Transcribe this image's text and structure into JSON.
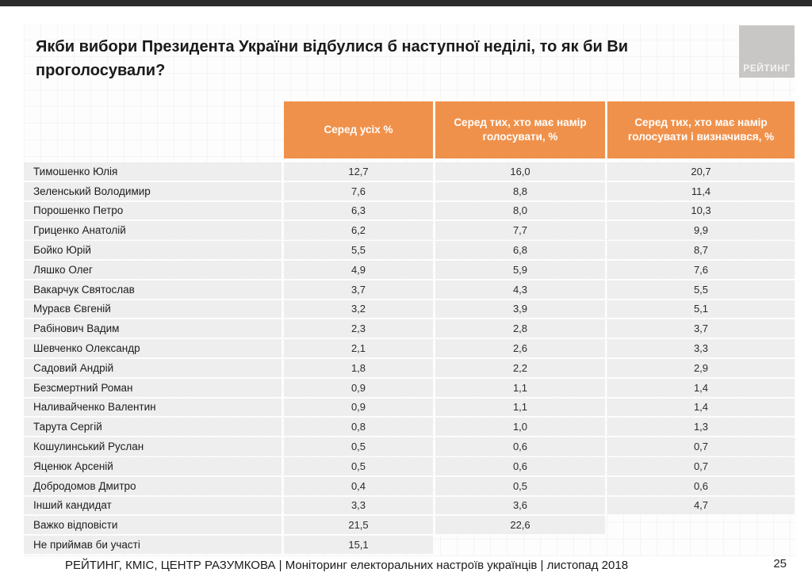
{
  "page": {
    "logo_text": "РЕЙТИНГ",
    "footer_text": "РЕЙТИНГ, КМІС, ЦЕНТР РАЗУМКОВА |  Моніторинг електоральних настроїв українців | листопад 2018",
    "page_number": "25"
  },
  "colors": {
    "header_bg": "#f0914b",
    "header_text": "#ffffff",
    "row_bg": "#efeeee",
    "logo_bg": "#c9c7c5",
    "top_bar": "#2b2b2b"
  },
  "chart_data": {
    "type": "table",
    "title": "Якби вибори Президента України відбулися б наступної неділі, то як би Ви проголосували?",
    "columns": [
      "Серед усіх %",
      "Серед тих, хто має намір голосувати, %",
      "Серед тих, хто має намір голосувати і визначився, %"
    ],
    "rows": [
      {
        "label": "Тимошенко Юлія",
        "values": [
          "12,7",
          "16,0",
          "20,7"
        ]
      },
      {
        "label": "Зеленський Володимир",
        "values": [
          "7,6",
          "8,8",
          "11,4"
        ]
      },
      {
        "label": "Порошенко Петро",
        "values": [
          "6,3",
          "8,0",
          "10,3"
        ]
      },
      {
        "label": "Гриценко Анатолій",
        "values": [
          "6,2",
          "7,7",
          "9,9"
        ]
      },
      {
        "label": "Бойко Юрій",
        "values": [
          "5,5",
          "6,8",
          "8,7"
        ]
      },
      {
        "label": "Ляшко Олег",
        "values": [
          "4,9",
          "5,9",
          "7,6"
        ]
      },
      {
        "label": "Вакарчук Святослав",
        "values": [
          "3,7",
          "4,3",
          "5,5"
        ]
      },
      {
        "label": "Мураєв Євгеній",
        "values": [
          "3,2",
          "3,9",
          "5,1"
        ]
      },
      {
        "label": "Рабінович Вадим",
        "values": [
          "2,3",
          "2,8",
          "3,7"
        ]
      },
      {
        "label": "Шевченко Олександр",
        "values": [
          "2,1",
          "2,6",
          "3,3"
        ]
      },
      {
        "label": "Садовий Андрій",
        "values": [
          "1,8",
          "2,2",
          "2,9"
        ]
      },
      {
        "label": "Безсмертний Роман",
        "values": [
          "0,9",
          "1,1",
          "1,4"
        ]
      },
      {
        "label": "Наливайченко Валентин",
        "values": [
          "0,9",
          "1,1",
          "1,4"
        ]
      },
      {
        "label": "Тарута Сергій",
        "values": [
          "0,8",
          "1,0",
          "1,3"
        ]
      },
      {
        "label": "Кошулинський Руслан",
        "values": [
          "0,5",
          "0,6",
          "0,7"
        ]
      },
      {
        "label": "Яценюк Арсеній",
        "values": [
          "0,5",
          "0,6",
          "0,7"
        ]
      },
      {
        "label": "Добродомов Дмитро",
        "values": [
          "0,4",
          "0,5",
          "0,6"
        ]
      },
      {
        "label": "Інший кандидат",
        "values": [
          "3,3",
          "3,6",
          "4,7"
        ]
      },
      {
        "label": "Важко відповісти",
        "values": [
          "21,5",
          "22,6",
          null
        ]
      },
      {
        "label": "Не приймав би участі",
        "values": [
          "15,1",
          null,
          null
        ]
      }
    ]
  }
}
